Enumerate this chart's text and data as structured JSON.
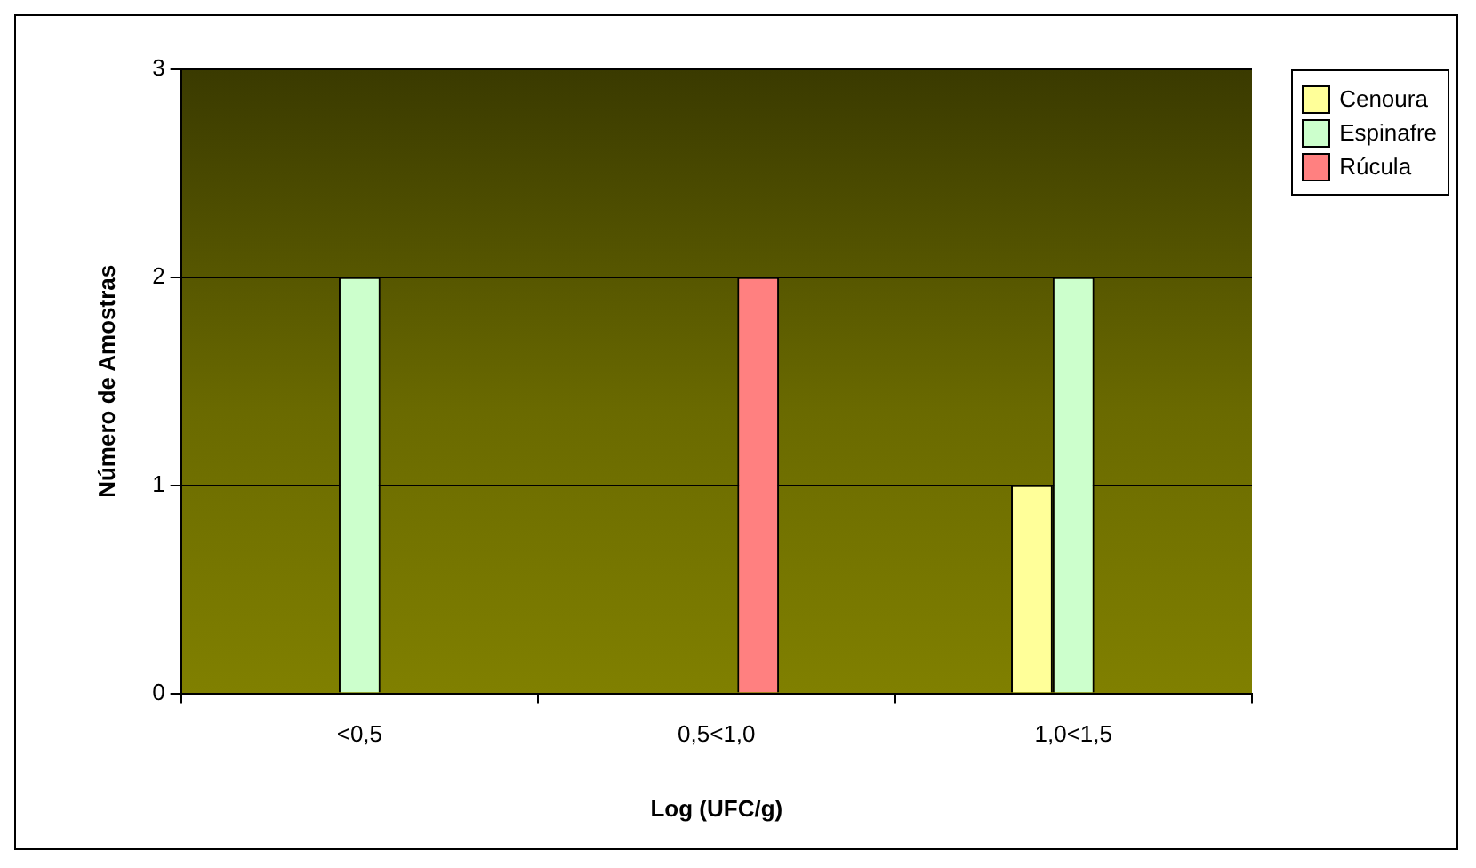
{
  "chart_data": {
    "type": "bar",
    "xlabel": "Log (UFC/g)",
    "ylabel": "Número de Amostras",
    "categories": [
      "<0,5",
      "0,5<1,0",
      "1,0<1,5"
    ],
    "series": [
      {
        "name": "Cenoura",
        "color": "#ffff99",
        "values": [
          0,
          0,
          1
        ]
      },
      {
        "name": "Espinafre",
        "color": "#ccffcc",
        "values": [
          2,
          0,
          2
        ]
      },
      {
        "name": "Rúcula",
        "color": "#ff8080",
        "values": [
          0,
          2,
          0
        ]
      }
    ],
    "ylim": [
      0,
      3
    ],
    "yticks": [
      0,
      1,
      2,
      3
    ],
    "grid": "y",
    "legend": "right"
  }
}
